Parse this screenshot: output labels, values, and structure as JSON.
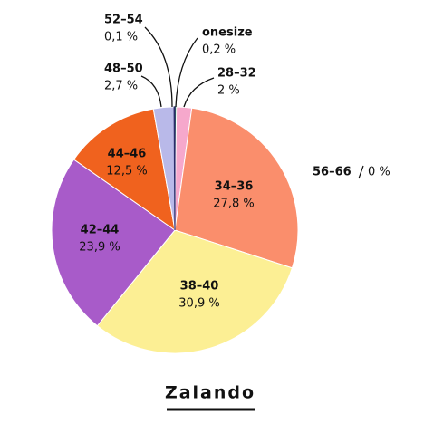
{
  "chart_data": {
    "type": "pie",
    "title": "Zalando",
    "categories": [
      "onesize",
      "28–32",
      "34–36",
      "38–40",
      "42–44",
      "44–46",
      "48–50",
      "52–54",
      "56–66"
    ],
    "values": [
      0.2,
      2,
      27.8,
      30.9,
      23.9,
      12.5,
      2.7,
      0.1,
      0
    ],
    "value_labels": [
      "0,2 %",
      "2 %",
      "27,8 %",
      "30,9 %",
      "23,9 %",
      "12,5 %",
      "2,7 %",
      "0,1 %",
      "0 %"
    ],
    "colors": [
      "#2e8b57",
      "#f6a8cc",
      "#fa8e6c",
      "#fcef94",
      "#a85bc9",
      "#f0621e",
      "#b9b9e9",
      "#2b2b6b",
      "#cccccc"
    ]
  }
}
